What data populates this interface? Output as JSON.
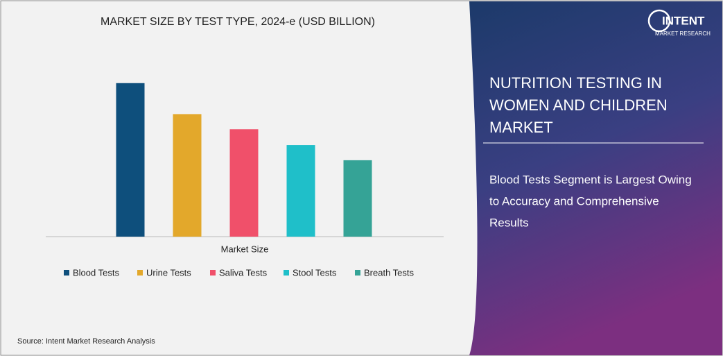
{
  "chart_data": {
    "type": "bar",
    "title": "MARKET SIZE BY TEST TYPE, 2024-e (USD BILLION)",
    "categories": [
      "Market Size"
    ],
    "series": [
      {
        "name": "Blood Tests",
        "color": "#0e4f7c",
        "values": [
          2.23
        ]
      },
      {
        "name": "Urine Tests",
        "color": "#e3a82b",
        "values": [
          1.78
        ]
      },
      {
        "name": "Saliva Tests",
        "color": "#f0506a",
        "values": [
          1.56
        ]
      },
      {
        "name": "Stool Tests",
        "color": "#1fbfc9",
        "values": [
          1.33
        ]
      },
      {
        "name": "Breath Tests",
        "color": "#35a396",
        "values": [
          1.11
        ]
      }
    ],
    "ylim": [
      0,
      2.5
    ]
  },
  "source": "Source:  Intent Market Research Analysis",
  "panel": {
    "logo": {
      "name": "INTENT",
      "tagline": "MARKET RESEARCH"
    },
    "heading": [
      "NUTRITION TESTING IN",
      "WOMEN AND CHILDREN",
      "MARKET"
    ],
    "subheading": [
      "Blood Tests Segment is Largest Owing",
      "to Accuracy and Comprehensive",
      "Results"
    ]
  }
}
